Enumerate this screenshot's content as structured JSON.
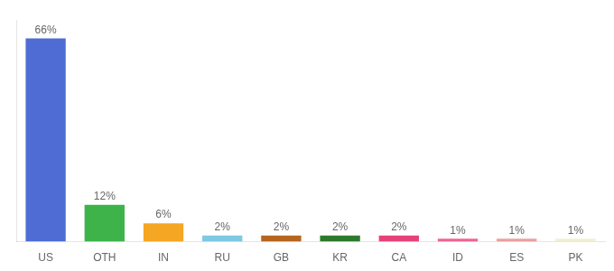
{
  "chart_data": {
    "type": "bar",
    "categories": [
      "US",
      "OTH",
      "IN",
      "RU",
      "GB",
      "KR",
      "CA",
      "ID",
      "ES",
      "PK"
    ],
    "values": [
      66,
      12,
      6,
      2,
      2,
      2,
      2,
      1,
      1,
      1
    ],
    "value_labels": [
      "66%",
      "12%",
      "6%",
      "2%",
      "2%",
      "2%",
      "2%",
      "1%",
      "1%",
      "1%"
    ],
    "colors": [
      "#4f6cd4",
      "#3db34a",
      "#f5a623",
      "#7ec8e3",
      "#b5651d",
      "#2d7a2d",
      "#e8417a",
      "#f06292",
      "#e8a0a0",
      "#f0f0d0"
    ],
    "ylim": [
      0,
      72
    ],
    "data_labels": true,
    "tick_labels": "x",
    "grid": false
  }
}
